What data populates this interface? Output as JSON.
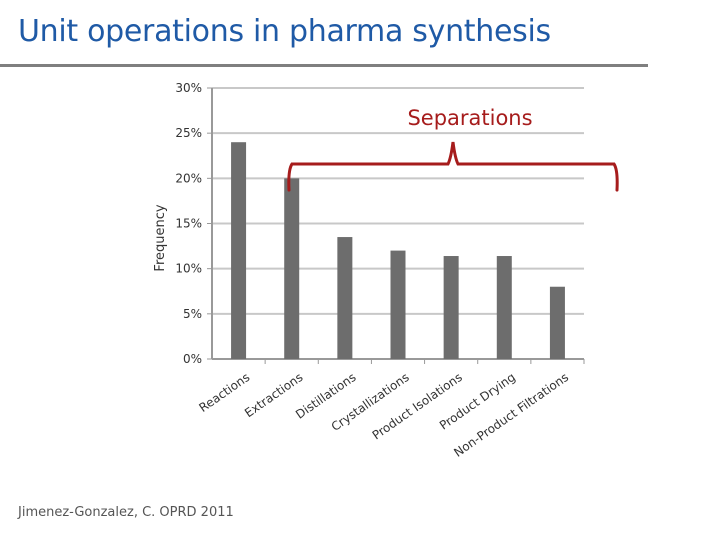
{
  "slide": {
    "title": "Unit operations in pharma synthesis",
    "citation": "Jimenez-Gonzalez, C. OPRD 2011"
  },
  "annotation": {
    "label": "Separations",
    "color": "#a61c1c"
  },
  "colors": {
    "title": "#1f5aa6",
    "bar": "#6d6d6d",
    "grid": "#c8c8c8",
    "axis": "#999999"
  },
  "chart_data": {
    "type": "bar",
    "categories": [
      "Reactions",
      "Extractions",
      "Distillations",
      "Crystallizations",
      "Product Isolations",
      "Product Drying",
      "Non-Product Filtrations"
    ],
    "values": [
      24,
      20,
      13.5,
      12,
      11.4,
      11.4,
      8
    ],
    "ylabel": "Frequency",
    "ylim": [
      0,
      30
    ],
    "yticks": [
      "0%",
      "5%",
      "10%",
      "15%",
      "20%",
      "25%",
      "30%"
    ],
    "ytick_values": [
      0,
      5,
      10,
      15,
      20,
      25,
      30
    ],
    "grid": true
  }
}
